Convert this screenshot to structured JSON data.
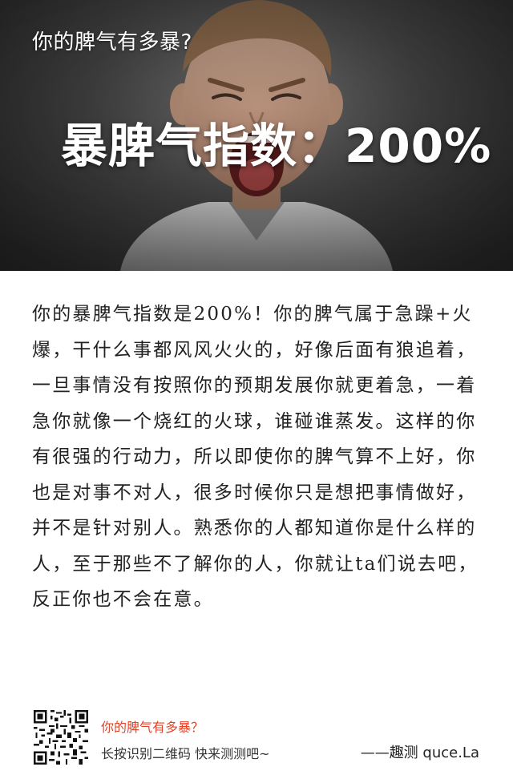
{
  "hero": {
    "title": "你的脾气有多暴?",
    "score_label": "暴脾气指数：200%",
    "image": "angry-screaming-boy-photo"
  },
  "result": {
    "text": "你的暴脾气指数是200%！你的脾气属于急躁+火爆，干什么事都风风火火的，好像后面有狼追着，一旦事情没有按照你的预期发展你就更着急，一着急你就像一个烧红的火球，谁碰谁蒸发。这样的你有很强的行动力，所以即使你的脾气算不上好，你也是对事不对人，很多时候你只是想把事情做好，并不是针对别人。熟悉你的人都知道你是什么样的人，至于那些不了解你的人，你就让ta们说去吧，反正你也不会在意。"
  },
  "footer": {
    "qr_icon": "qr-code-icon",
    "quiz_title": "你的脾气有多暴？",
    "instruction": "长按识别二维码  快来测测吧~",
    "brand": "——趣测 quce.La"
  },
  "colors": {
    "accent": "#e0452b",
    "text": "#222222",
    "hero_overlay": "#4a4a4a"
  }
}
